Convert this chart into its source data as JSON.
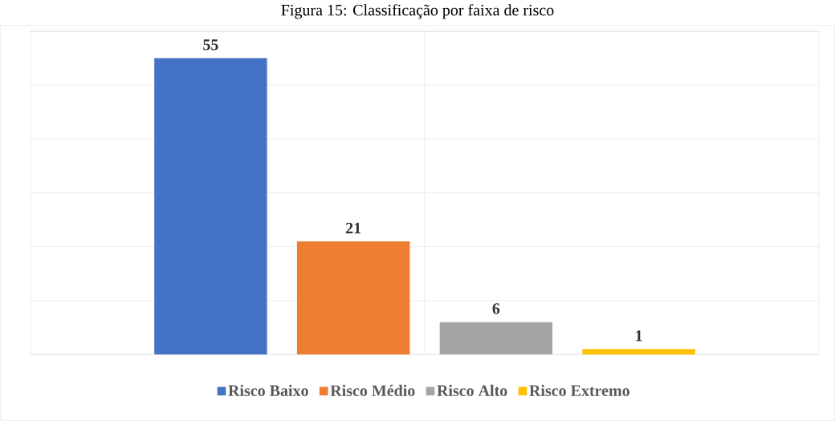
{
  "chart_data": {
    "type": "bar",
    "title": "Figura 15: Classificação por faixa de risco",
    "categories": [
      null
    ],
    "series": [
      {
        "name": "Risco Baixo",
        "color": "#4472c4",
        "values": [
          55
        ]
      },
      {
        "name": "Risco Médio",
        "color": "#ed7d31",
        "values": [
          21
        ]
      },
      {
        "name": "Risco Alto",
        "color": "#a5a5a5",
        "values": [
          6
        ]
      },
      {
        "name": "Risco Extremo",
        "color": "#ffc000",
        "values": [
          1
        ]
      }
    ],
    "ylim": [
      0,
      60
    ],
    "yticks": [
      {
        "value": 0,
        "label": null
      },
      {
        "value": 10,
        "label": null
      },
      {
        "value": 20,
        "label": null
      },
      {
        "value": 30,
        "label": null
      },
      {
        "value": 40,
        "label": null
      },
      {
        "value": 50,
        "label": null
      },
      {
        "value": 60,
        "label": null
      }
    ],
    "grid": true,
    "legend": "bottom",
    "data_labels": true
  }
}
